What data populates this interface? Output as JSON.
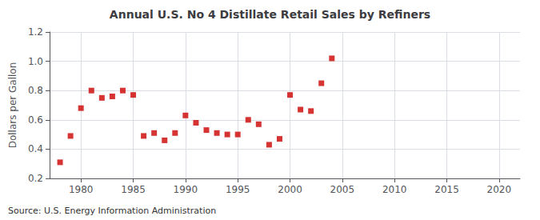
{
  "chart_data": {
    "type": "scatter",
    "title": "Annual U.S. No 4 Distillate Retail Sales by Refiners",
    "ylabel": "Dollars per Gallon",
    "annotation": "Source: U.S. Energy Information Administration",
    "x": [
      1978,
      1979,
      1980,
      1981,
      1982,
      1983,
      1984,
      1985,
      1986,
      1987,
      1988,
      1989,
      1990,
      1991,
      1992,
      1993,
      1994,
      1995,
      1996,
      1997,
      1998,
      1999,
      2000,
      2001,
      2002,
      2003,
      2004
    ],
    "values": [
      0.31,
      0.49,
      0.68,
      0.8,
      0.75,
      0.76,
      0.8,
      0.77,
      0.49,
      0.51,
      0.46,
      0.51,
      0.63,
      0.58,
      0.53,
      0.51,
      0.5,
      0.5,
      0.6,
      0.57,
      0.43,
      0.47,
      0.77,
      0.67,
      0.66,
      0.85,
      1.02
    ],
    "color": "#cc0000",
    "marker": "square",
    "xlim": [
      1977,
      2022
    ],
    "xticks": [
      1980,
      1985,
      1990,
      1995,
      2000,
      2005,
      2010,
      2015,
      2020
    ],
    "ylim": [
      0.2,
      1.2
    ],
    "yticks": [
      0.2,
      0.4,
      0.6,
      0.8,
      {
        "value": 1.0,
        "label": "1.0"
      },
      1.2
    ],
    "grid": true
  }
}
